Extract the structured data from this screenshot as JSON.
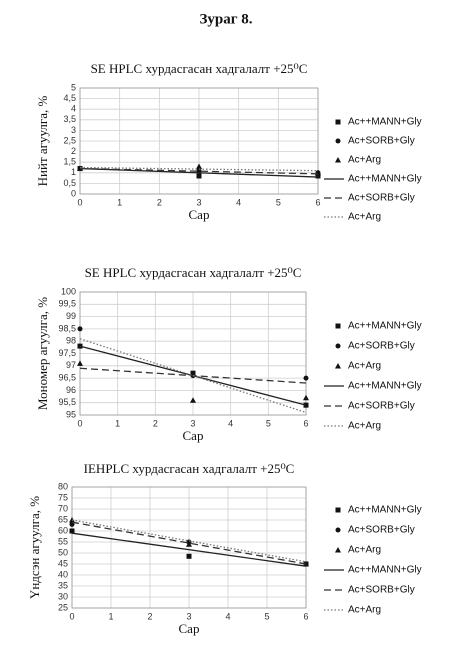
{
  "title": "Зураг 8.",
  "chart_data": [
    {
      "type": "scatter",
      "title": "SE HPLC хурдасгасан хадгалалт +25⁰C",
      "x_label": "Сар",
      "y_label": "Нийт агуулга, %",
      "x": [
        0,
        3,
        6
      ],
      "xlim": [
        0,
        6
      ],
      "xticks": [
        0,
        1,
        2,
        3,
        4,
        5,
        6
      ],
      "ylim": [
        0,
        5
      ],
      "yticks": [
        0,
        {
          "value": 0.5,
          "label": "0,5"
        },
        1,
        {
          "value": 1.5,
          "label": "1,5"
        },
        2,
        {
          "value": 2.5,
          "label": "2,5"
        },
        3,
        {
          "value": 3.5,
          "label": "3,5"
        },
        4,
        {
          "value": 4.5,
          "label": "4,5"
        },
        5
      ],
      "grid": true,
      "series": [
        {
          "name": "Ac++MANN+Gly",
          "color": "#111111",
          "marker": "square",
          "values": [
            1.2,
            0.85,
            0.85
          ]
        },
        {
          "name": "Ac+SORB+Gly",
          "color": "#111111",
          "marker": "circle",
          "values": [
            1.2,
            1.1,
            1.0
          ]
        },
        {
          "name": "Ac+Arg",
          "color": "#111111",
          "marker": "triangle",
          "values": [
            1.2,
            1.3,
            1.0
          ]
        },
        {
          "name": "Ac++MANN+Gly",
          "color": "#222222",
          "line": "solid",
          "x": [
            0,
            6
          ],
          "values": [
            1.2,
            0.8
          ]
        },
        {
          "name": "Ac+SORB+Gly",
          "color": "#333333",
          "line": "dashed",
          "x": [
            0,
            6
          ],
          "values": [
            1.2,
            0.95
          ]
        },
        {
          "name": "Ac+Arg",
          "color": "#777777",
          "line": "dotted",
          "x": [
            0,
            6
          ],
          "values": [
            1.25,
            1.1
          ]
        }
      ]
    },
    {
      "type": "scatter",
      "title": "SE HPLC хурдасгасан хадгалалт +25⁰C",
      "x_label": "Сар",
      "y_label": "Мономер агуулга, %",
      "x": [
        0,
        3,
        6
      ],
      "xlim": [
        0,
        6
      ],
      "xticks": [
        0,
        1,
        2,
        3,
        4,
        5,
        6
      ],
      "ylim": [
        95,
        100
      ],
      "yticks": [
        95,
        {
          "value": 95.5,
          "label": "95,5"
        },
        96,
        {
          "value": 96.5,
          "label": "96,5"
        },
        97,
        {
          "value": 97.5,
          "label": "97,5"
        },
        98,
        {
          "value": 98.5,
          "label": "98,5"
        },
        99,
        {
          "value": 99.5,
          "label": "99,5"
        },
        100
      ],
      "grid": true,
      "series": [
        {
          "name": "Ac++MANN+Gly",
          "color": "#111111",
          "marker": "square",
          "values": [
            97.8,
            96.7,
            95.4
          ]
        },
        {
          "name": "Ac+SORB+Gly",
          "color": "#111111",
          "marker": "circle",
          "values": [
            98.5,
            96.6,
            96.5
          ]
        },
        {
          "name": "Ac+Arg",
          "color": "#111111",
          "marker": "triangle",
          "values": [
            97.1,
            95.6,
            95.7
          ]
        },
        {
          "name": "Ac++MANN+Gly",
          "color": "#222222",
          "line": "solid",
          "x": [
            0,
            6
          ],
          "values": [
            97.8,
            95.4
          ]
        },
        {
          "name": "Ac+SORB+Gly",
          "color": "#333333",
          "line": "dashed",
          "x": [
            0,
            6
          ],
          "values": [
            96.9,
            96.3
          ]
        },
        {
          "name": "Ac+Arg",
          "color": "#777777",
          "line": "dotted",
          "x": [
            0,
            6
          ],
          "values": [
            98.1,
            95.1
          ]
        }
      ]
    },
    {
      "type": "scatter",
      "title": "IEHPLC хурдасгасан хадгалалт +25⁰C",
      "x_label": "Сар",
      "y_label": "Үндсэн агуулга, %",
      "x": [
        0,
        3,
        6
      ],
      "xlim": [
        0,
        6
      ],
      "xticks": [
        0,
        1,
        2,
        3,
        4,
        5,
        6
      ],
      "ylim": [
        25,
        80
      ],
      "yticks": [
        25,
        30,
        35,
        40,
        45,
        50,
        55,
        60,
        65,
        70,
        75,
        80
      ],
      "grid": true,
      "series": [
        {
          "name": "Ac++MANN+Gly",
          "color": "#111111",
          "marker": "square",
          "values": [
            60,
            48.5,
            45
          ]
        },
        {
          "name": "Ac+SORB+Gly",
          "color": "#111111",
          "marker": "circle",
          "values": [
            63,
            55,
            45
          ]
        },
        {
          "name": "Ac+Arg",
          "color": "#111111",
          "marker": "triangle",
          "values": [
            65,
            54,
            45
          ]
        },
        {
          "name": "Ac++MANN+Gly",
          "color": "#222222",
          "line": "solid",
          "x": [
            0,
            6
          ],
          "values": [
            59,
            44
          ]
        },
        {
          "name": "Ac+SORB+Gly",
          "color": "#333333",
          "line": "dashed",
          "x": [
            0,
            6
          ],
          "values": [
            64,
            45
          ]
        },
        {
          "name": "Ac+Arg",
          "color": "#777777",
          "line": "dotted",
          "x": [
            0,
            6
          ],
          "values": [
            65,
            46
          ]
        }
      ]
    }
  ]
}
